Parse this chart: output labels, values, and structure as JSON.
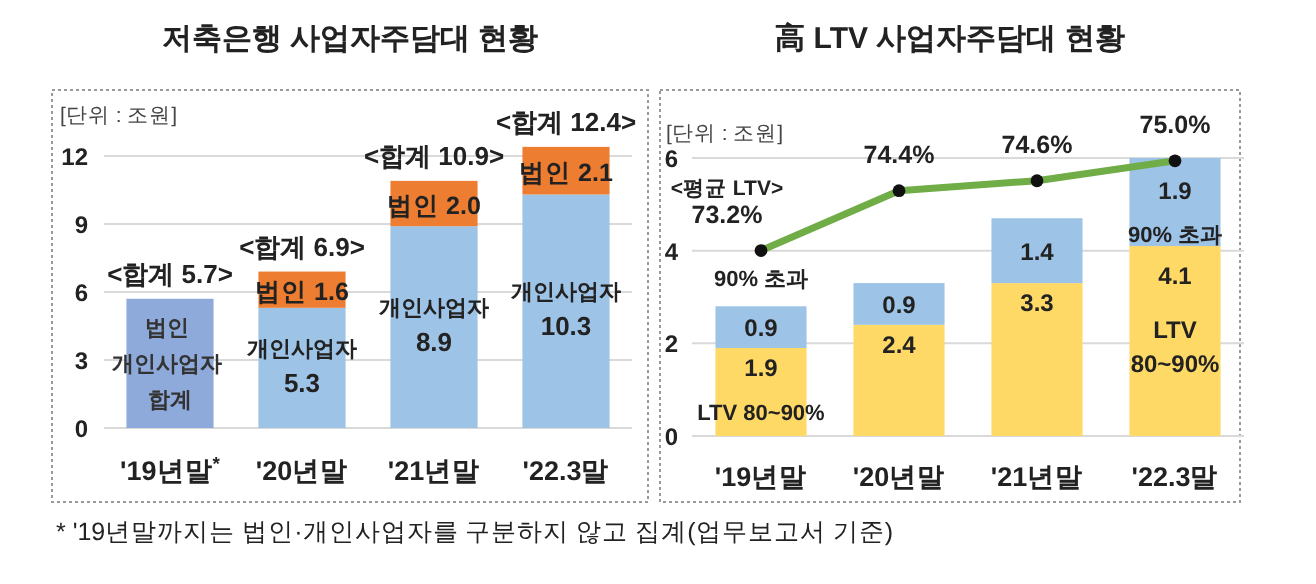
{
  "chart_data": [
    {
      "type": "bar",
      "title": "저축은행 사업자주담대 현황",
      "ylabel": "[단위 : 조원]",
      "stacked": true,
      "grid": "y",
      "categories": [
        "'19년말$^{*}$",
        "'20년말",
        "'21년말",
        "'22.3말"
      ],
      "ylim": [
        0,
        12.5
      ],
      "yticks": [
        0,
        3,
        6,
        9,
        12
      ],
      "series": [
        {
          "name": "법인 개인사업자 합계",
          "color": "#8eaadb",
          "values": [
            5.7,
            null,
            null,
            null
          ]
        },
        {
          "name": "개인사업자",
          "color": "#9dc3e6",
          "values": [
            null,
            5.3,
            8.9,
            10.3
          ],
          "value_labels": [
            null,
            "5.3",
            "8.9",
            "10.3"
          ]
        },
        {
          "name": "법인",
          "color": "#ed7d31",
          "values": [
            null,
            1.6,
            2.0,
            2.1
          ],
          "value_labels": [
            null,
            "1.6",
            "2.0",
            "2.1"
          ]
        }
      ],
      "totals": [
        "<합계 5.7>",
        "<합계 6.9>",
        "<합계 10.9>",
        "<합계 12.4>"
      ],
      "annotations": [
        "* '19년말까지는 법인·개인사업자를 구분하지 않고 집계(업무보고서 기준)"
      ]
    },
    {
      "type": "bar",
      "title": "高 LTV 사업자주담대 현황",
      "ylabel": "[단위 : 조원]",
      "stacked": true,
      "grid": "y",
      "marker": "circle",
      "categories": [
        "'19년말",
        "'20년말",
        "'21년말",
        "'22.3말"
      ],
      "ylim": [
        0,
        6
      ],
      "yticks": [
        0,
        2,
        4,
        6
      ],
      "series": [
        {
          "name": "LTV 80~90%",
          "color": "#ffd966",
          "values": [
            1.9,
            2.4,
            3.3,
            4.1
          ],
          "value_labels": [
            "1.9",
            "2.4",
            "3.3",
            "4.1"
          ]
        },
        {
          "name": "90% 초과",
          "color": "#9dc3e6",
          "values": [
            0.9,
            0.9,
            1.4,
            1.9
          ],
          "value_labels": [
            "0.9",
            "0.9",
            "1.4",
            "1.9"
          ]
        },
        {
          "name": "<평균 LTV>",
          "type": "line",
          "axis": "y2",
          "color": "#70ad47",
          "values": [
            73.2,
            74.4,
            74.6,
            75.0
          ],
          "value_labels": [
            "73.2%",
            "74.4%",
            "74.6%",
            "75.0%"
          ]
        }
      ]
    }
  ]
}
